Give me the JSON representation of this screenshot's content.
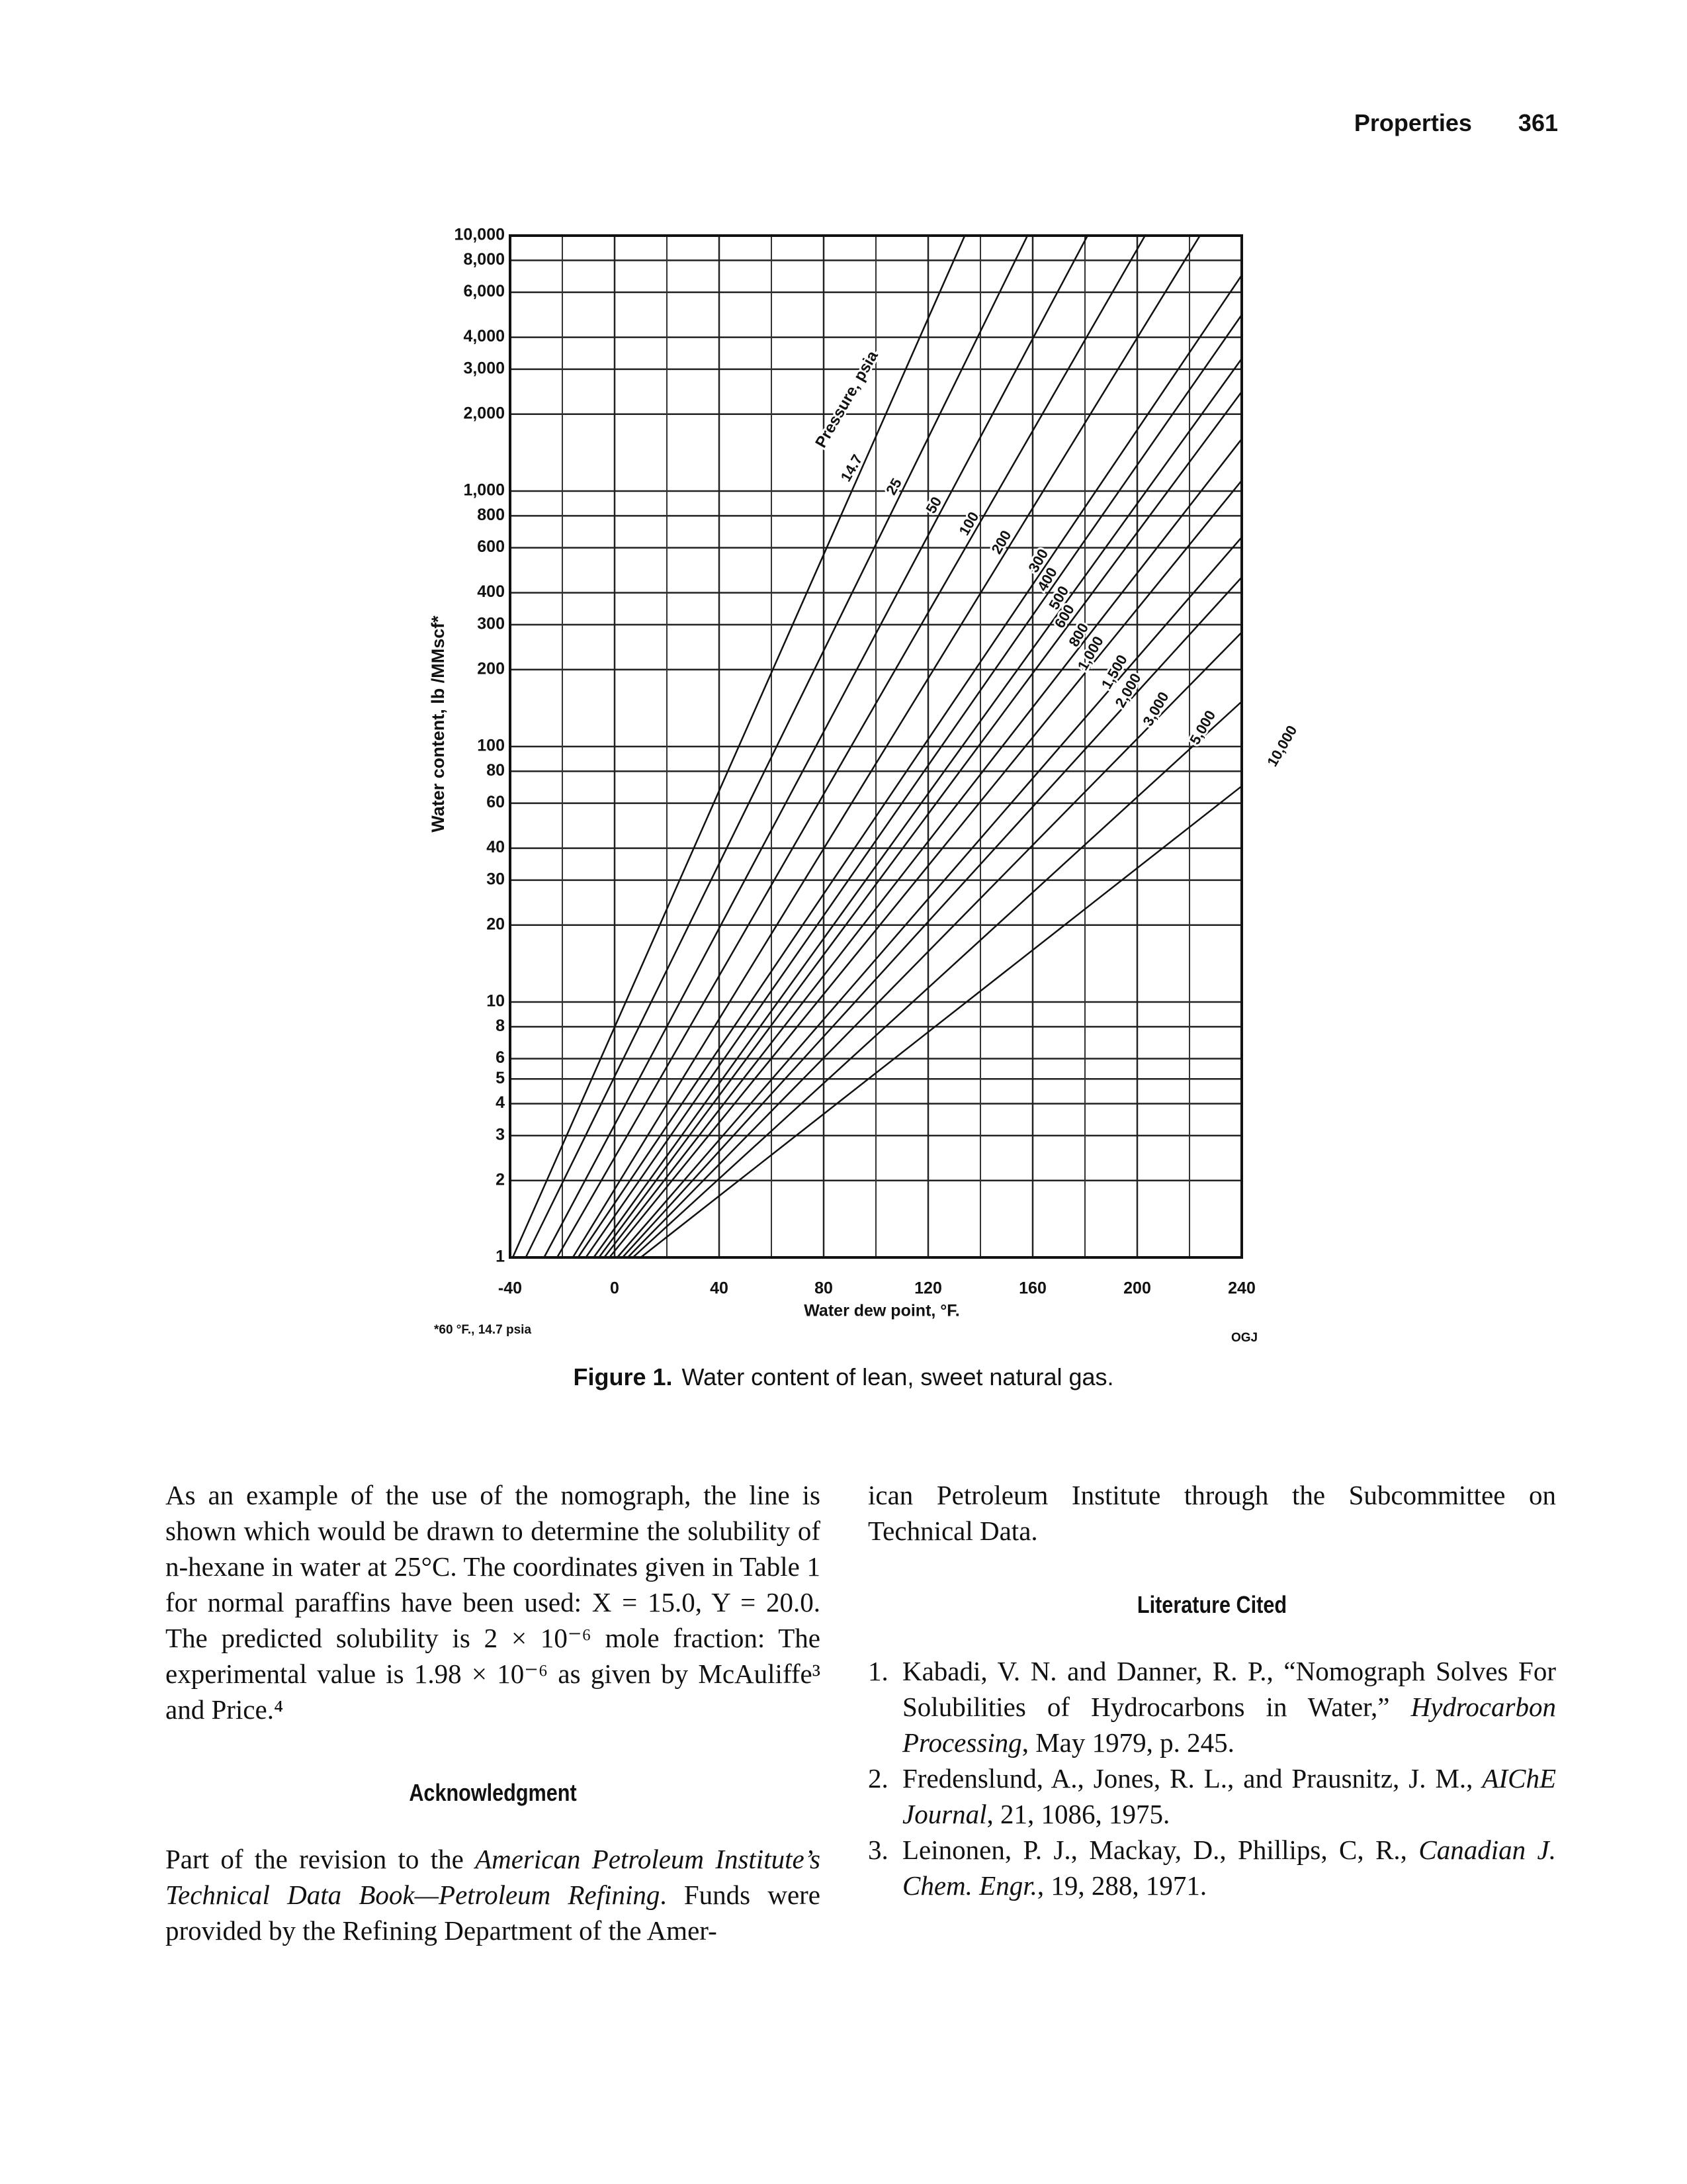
{
  "header": {
    "section": "Properties",
    "page": "361"
  },
  "chart_data": {
    "type": "line",
    "xlabel": "Water dew point, °F.",
    "ylabel": "Water content, lb /MMscf*",
    "footnote": "*60 °F., 14.7 psia",
    "source": "OGJ",
    "annotation": "Pressure, psia",
    "xlim": [
      -40,
      240
    ],
    "xticks": [
      -40,
      0,
      40,
      80,
      120,
      160,
      200,
      240
    ],
    "x_minor_grid": [
      -20,
      20,
      60,
      100,
      140,
      180,
      220
    ],
    "ylim": [
      1,
      10000
    ],
    "y_scale": "log",
    "yticks": [
      {
        "value": 10000,
        "label": "10,000"
      },
      {
        "value": 8000,
        "label": "8,000"
      },
      {
        "value": 6000,
        "label": "6,000"
      },
      {
        "value": 4000,
        "label": "4,000"
      },
      {
        "value": 3000,
        "label": "3,000"
      },
      {
        "value": 2000,
        "label": "2,000"
      },
      {
        "value": 1000,
        "label": "1,000"
      },
      800,
      600,
      400,
      300,
      200,
      100,
      80,
      60,
      40,
      30,
      20,
      10,
      8,
      6,
      5,
      4,
      3,
      2,
      1
    ],
    "grid": true,
    "series": [
      {
        "name": "14.7",
        "color": "#111111",
        "x": [
          -39,
          134
        ],
        "values": [
          1,
          10000
        ]
      },
      {
        "name": "25",
        "color": "#111111",
        "x": [
          -34,
          158
        ],
        "values": [
          1,
          10000
        ]
      },
      {
        "name": "50",
        "color": "#111111",
        "x": [
          -27,
          181
        ],
        "values": [
          1,
          10000
        ]
      },
      {
        "name": "100",
        "color": "#111111",
        "x": [
          -22,
          203
        ],
        "values": [
          1,
          10000
        ]
      },
      {
        "name": "200",
        "color": "#111111",
        "x": [
          -16,
          224
        ],
        "values": [
          1,
          10000
        ]
      },
      {
        "name": "300",
        "color": "#111111",
        "x": [
          -14,
          240
        ],
        "values": [
          1,
          7000
        ]
      },
      {
        "name": "400",
        "color": "#111111",
        "x": [
          -11,
          240
        ],
        "values": [
          1,
          4900
        ]
      },
      {
        "name": "500",
        "color": "#111111",
        "x": [
          -8,
          240
        ],
        "values": [
          1,
          3300
        ]
      },
      {
        "name": "600",
        "color": "#111111",
        "x": [
          -6,
          240
        ],
        "values": [
          1,
          2450
        ]
      },
      {
        "name": "800",
        "color": "#111111",
        "x": [
          -4,
          240
        ],
        "values": [
          1,
          1600
        ]
      },
      {
        "name": "1,000",
        "color": "#111111",
        "x": [
          -2,
          240
        ],
        "values": [
          1,
          1100
        ]
      },
      {
        "name": "1,500",
        "color": "#111111",
        "x": [
          1,
          240
        ],
        "values": [
          1,
          660
        ]
      },
      {
        "name": "2,000",
        "color": "#111111",
        "x": [
          3,
          240
        ],
        "values": [
          1,
          460
        ]
      },
      {
        "name": "3,000",
        "color": "#111111",
        "x": [
          5,
          240
        ],
        "values": [
          1,
          280
        ]
      },
      {
        "name": "5,000",
        "color": "#111111",
        "x": [
          7,
          240
        ],
        "values": [
          1,
          150
        ]
      },
      {
        "name": "10,000",
        "color": "#111111",
        "x": [
          10,
          240
        ],
        "values": [
          1,
          70
        ]
      }
    ]
  },
  "caption": {
    "label": "Figure 1.",
    "text": "Water content of lean, sweet natural gas."
  },
  "body": {
    "paragraph": "As an example of the use of the nomograph, the line is shown which would be drawn to determine the solubility of n-hexane in water at 25°C. The coordinates given in Table 1 for normal paraffins have been used: X = 15.0, Y = 20.0. The predicted solubility is 2 × 10⁻⁶ mole fraction: The experimental value is 1.98 × 10⁻⁶ as given by McAuliffe³ and Price.⁴",
    "acknowledgment": {
      "heading": "Acknowledgment",
      "text_before": "Part of the revision to the ",
      "source": "American Petroleum Institute’s Technical Data Book—Petroleum Refining",
      "text_after": ". Funds were provided by the Refining Department of the Amer-",
      "continuation": "ican Petroleum Institute through the Subcommittee on Technical Data."
    },
    "literature": {
      "heading": "Literature Cited",
      "references": [
        {
          "number": "1.",
          "authors_title": "Kabadi, V. N. and Danner, R. P., “Nomograph Solves For Solubilities of Hydrocarbons in Water,” ",
          "source": "Hydrocarbon Processing",
          "details": ", May 1979, p. 245."
        },
        {
          "number": "2.",
          "authors_title": "Fredenslund, A., Jones, R. L., and Prausnitz, J. M., ",
          "source": "AIChE Journal",
          "details": ", 21, 1086, 1975."
        },
        {
          "number": "3.",
          "authors_title": "Leinonen, P. J., Mackay, D., Phillips, C, R., ",
          "source": "Canadian J. Chem. Engr.",
          "details": ", 19, 288, 1971."
        }
      ]
    }
  }
}
